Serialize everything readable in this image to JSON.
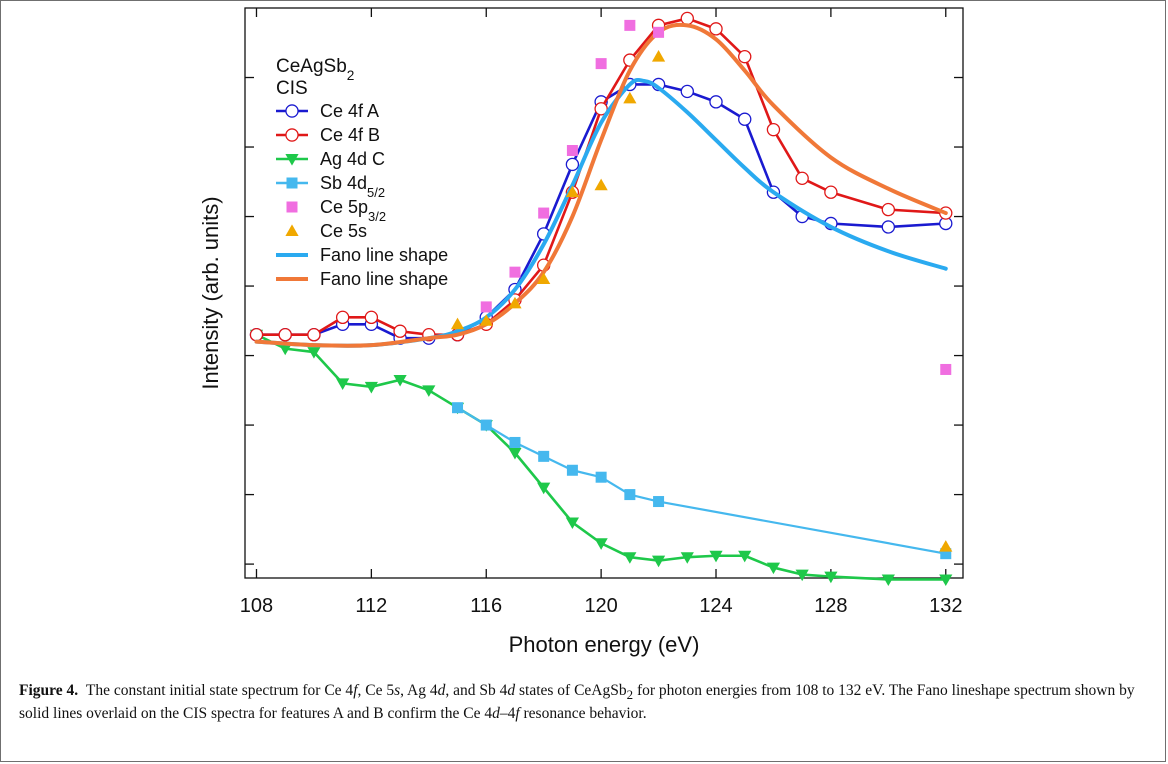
{
  "colors": {
    "ce4f_a": "#1a1ad0",
    "ce4f_b": "#e01818",
    "ag4d_c": "#1ec84a",
    "sb4d": "#45b8ee",
    "ce5p": "#f06ee0",
    "ce5s": "#f0a800",
    "fano_a": "#2aaaf0",
    "fano_b": "#f07838"
  },
  "caption": {
    "label": "Figure 4.",
    "segments": [
      {
        "t": "The constant initial state spectrum for Ce 4",
        "s": "n"
      },
      {
        "t": "f",
        "s": "i"
      },
      {
        "t": ", Ce 5",
        "s": "n"
      },
      {
        "t": "s",
        "s": "i"
      },
      {
        "t": ", Ag 4",
        "s": "n"
      },
      {
        "t": "d",
        "s": "i"
      },
      {
        "t": ", and Sb 4",
        "s": "n"
      },
      {
        "t": "d",
        "s": "i"
      },
      {
        "t": " states of CeAgSb",
        "s": "n"
      },
      {
        "t": "2",
        "s": "sub"
      },
      {
        "t": " for photon energies from 108 to 132 eV. The Fano lineshape spectrum shown by solid lines overlaid on the CIS spectra for features A and B confirm the Ce 4",
        "s": "n"
      },
      {
        "t": "d",
        "s": "i"
      },
      {
        "t": "–4",
        "s": "n"
      },
      {
        "t": "f",
        "s": "i"
      },
      {
        "t": " resonance behavior.",
        "s": "n"
      }
    ]
  },
  "chart_data": {
    "type": "line",
    "title_lines": [
      [
        {
          "t": "CeAgSb",
          "s": "n"
        },
        {
          "t": "2",
          "s": "sub"
        }
      ],
      [
        {
          "t": "CIS",
          "s": "n"
        }
      ]
    ],
    "xlabel": "Photon energy (eV)",
    "ylabel": "Intensity (arb. units)",
    "xlim": [
      107.6,
      132.6
    ],
    "ylim": [
      -0.2,
      8.0
    ],
    "xticks": [
      108,
      112,
      116,
      120,
      124,
      128,
      132
    ],
    "yticks": [
      0,
      1,
      2,
      3,
      4,
      5,
      6,
      7
    ],
    "ytick_labels_shown": false,
    "legend_position": "top-left",
    "series": [
      {
        "key": "ce4f_a",
        "kind": "line-marker",
        "marker": "open-circle",
        "label": [
          {
            "t": "Ce 4f  A",
            "s": "n"
          }
        ],
        "x": [
          108,
          109,
          110,
          111,
          112,
          113,
          114,
          115,
          116,
          117,
          118,
          119,
          120,
          121,
          122,
          123,
          124,
          125,
          126,
          127,
          128,
          130,
          132
        ],
        "y": [
          3.3,
          3.3,
          3.3,
          3.45,
          3.45,
          3.25,
          3.25,
          3.3,
          3.55,
          3.95,
          4.75,
          5.75,
          6.65,
          6.9,
          6.9,
          6.8,
          6.65,
          6.4,
          5.35,
          5.0,
          4.9,
          4.85,
          4.9
        ]
      },
      {
        "key": "ce4f_b",
        "kind": "line-marker",
        "marker": "open-circle",
        "label": [
          {
            "t": "Ce 4f  B",
            "s": "n"
          }
        ],
        "x": [
          108,
          109,
          110,
          111,
          112,
          113,
          114,
          115,
          116,
          117,
          118,
          119,
          120,
          121,
          122,
          123,
          124,
          125,
          126,
          127,
          128,
          130,
          132
        ],
        "y": [
          3.3,
          3.3,
          3.3,
          3.55,
          3.55,
          3.35,
          3.3,
          3.3,
          3.45,
          3.8,
          4.3,
          5.35,
          6.55,
          7.25,
          7.75,
          7.85,
          7.7,
          7.3,
          6.25,
          5.55,
          5.35,
          5.1,
          5.05
        ]
      },
      {
        "key": "ag4d_c",
        "kind": "line-marker",
        "marker": "down-triangle",
        "label": [
          {
            "t": "Ag 4d  C",
            "s": "n"
          }
        ],
        "x": [
          108,
          109,
          110,
          111,
          112,
          113,
          114,
          115,
          116,
          117,
          118,
          119,
          120,
          121,
          122,
          123,
          124,
          125,
          126,
          127,
          128,
          130,
          132
        ],
        "y": [
          3.3,
          3.1,
          3.05,
          2.6,
          2.55,
          2.65,
          2.5,
          2.25,
          2.0,
          1.6,
          1.1,
          0.6,
          0.3,
          0.1,
          0.05,
          0.1,
          0.12,
          0.12,
          -0.05,
          -0.15,
          -0.18,
          -0.22,
          -0.22
        ]
      },
      {
        "key": "sb4d",
        "kind": "line-marker",
        "marker": "square",
        "label": [
          {
            "t": "Sb 4d",
            "s": "n"
          },
          {
            "t": "5/2",
            "s": "sub"
          }
        ],
        "x": [
          115,
          116,
          117,
          118,
          119,
          120,
          121,
          122,
          132
        ],
        "y": [
          2.25,
          2.0,
          1.75,
          1.55,
          1.35,
          1.25,
          1.0,
          0.9,
          0.15
        ]
      },
      {
        "key": "ce5p",
        "kind": "marker",
        "marker": "square",
        "label": [
          {
            "t": "Ce 5p",
            "s": "n"
          },
          {
            "t": "3/2",
            "s": "sub"
          }
        ],
        "x": [
          116,
          117,
          118,
          119,
          120,
          121,
          122,
          132
        ],
        "y": [
          3.7,
          4.2,
          5.05,
          5.95,
          7.2,
          7.75,
          7.65,
          2.8
        ]
      },
      {
        "key": "ce5s",
        "kind": "marker",
        "marker": "up-triangle",
        "label": [
          {
            "t": "Ce 5s",
            "s": "n"
          }
        ],
        "x": [
          115,
          116,
          117,
          118,
          119,
          120,
          121,
          122,
          132
        ],
        "y": [
          3.45,
          3.5,
          3.75,
          4.1,
          5.35,
          5.45,
          6.7,
          7.3,
          0.25
        ]
      },
      {
        "key": "fano_a",
        "kind": "line",
        "label": [
          {
            "t": "Fano line shape",
            "s": "n"
          }
        ],
        "x": [
          108,
          110,
          112,
          114,
          115,
          116,
          117,
          118,
          119,
          120,
          121,
          121.5,
          122,
          123,
          124,
          125,
          126,
          128,
          130,
          132
        ],
        "y": [
          3.2,
          3.15,
          3.15,
          3.25,
          3.35,
          3.55,
          3.95,
          4.6,
          5.45,
          6.35,
          6.9,
          6.95,
          6.85,
          6.5,
          6.1,
          5.7,
          5.35,
          4.85,
          4.5,
          4.25
        ]
      },
      {
        "key": "fano_b",
        "kind": "line",
        "label": [
          {
            "t": "Fano line shape",
            "s": "n"
          }
        ],
        "x": [
          108,
          110,
          112,
          114,
          115,
          116,
          117,
          118,
          119,
          120,
          121,
          122,
          123,
          124,
          125,
          126,
          128,
          130,
          132
        ],
        "y": [
          3.2,
          3.15,
          3.15,
          3.25,
          3.3,
          3.45,
          3.75,
          4.2,
          5.0,
          6.1,
          7.1,
          7.65,
          7.75,
          7.55,
          7.1,
          6.6,
          5.85,
          5.4,
          5.05
        ]
      }
    ]
  }
}
